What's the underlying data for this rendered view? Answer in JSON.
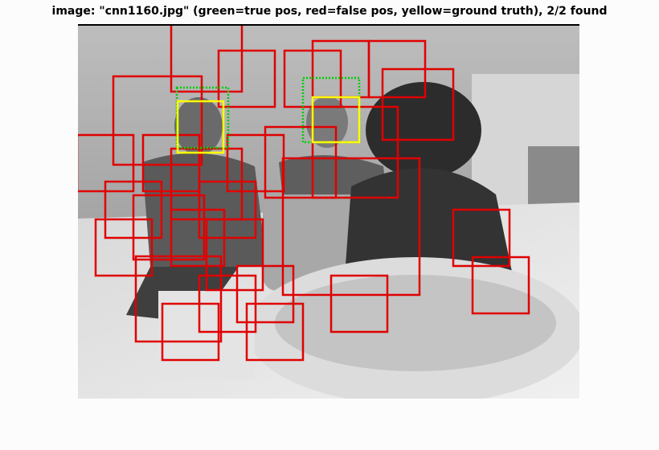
{
  "title": "image: \"cnn1160.jpg\" (green=true pos, red=false pos, yellow=ground truth), 2/2 found",
  "colors": {
    "true_pos": "#00cc00",
    "false_pos": "#e00000",
    "ground_truth": "#ffff00"
  }
}
